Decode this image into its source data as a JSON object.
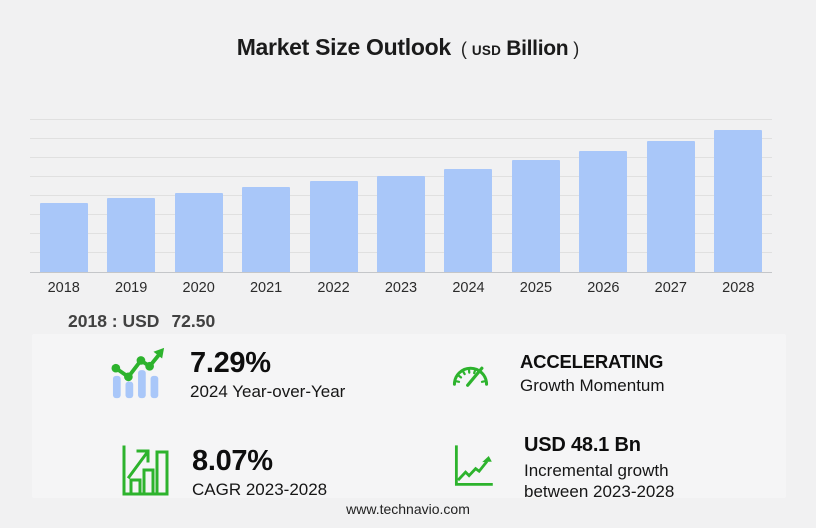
{
  "title": {
    "main": "Market Size Outlook",
    "open_paren": "(",
    "unit_small": "USD",
    "unit_big": "Billion",
    "close_paren": ")"
  },
  "chart_data": {
    "type": "bar",
    "title": "Market Size Outlook (USD Billion)",
    "categories": [
      "2018",
      "2019",
      "2020",
      "2021",
      "2022",
      "2023",
      "2024",
      "2025",
      "2026",
      "2027",
      "2028"
    ],
    "values": [
      72.5,
      77.9,
      83.1,
      89.3,
      95.6,
      101.5,
      108.9,
      117.9,
      127.6,
      138.2,
      149.6
    ],
    "xlabel": "",
    "ylabel": "",
    "ylim": [
      0,
      160
    ],
    "grid_step": 20,
    "grid": true,
    "legend": false,
    "bar_color": "#a9c7f9"
  },
  "annotation_2018": {
    "label": "2018 : USD",
    "value": "72.50"
  },
  "stats": [
    {
      "icon": "trend-bars-icon",
      "headline": "7.29%",
      "subtext": "2024 Year-over-Year"
    },
    {
      "icon": "gauge-icon",
      "headline": "ACCELERATING",
      "subtext": "Growth Momentum"
    },
    {
      "icon": "bar-growth-icon",
      "headline": "8.07%",
      "subtext": "CAGR 2023-2028"
    },
    {
      "icon": "line-growth-icon",
      "headline": "USD 48.1 Bn",
      "subtext": "Incremental growth",
      "subtext2": "between 2023-2028"
    }
  ],
  "footer": {
    "url": "www.technavio.com"
  },
  "colors": {
    "background": "#f1f1f2",
    "panel": "#f5f5f6",
    "bar_blue": "#a9c7f9",
    "accent_green": "#2db32d",
    "gridline": "#e0e0e0",
    "axis_line": "#c4c6c9",
    "text_dark": "#1b1b1b",
    "text_gray": "#414141"
  }
}
